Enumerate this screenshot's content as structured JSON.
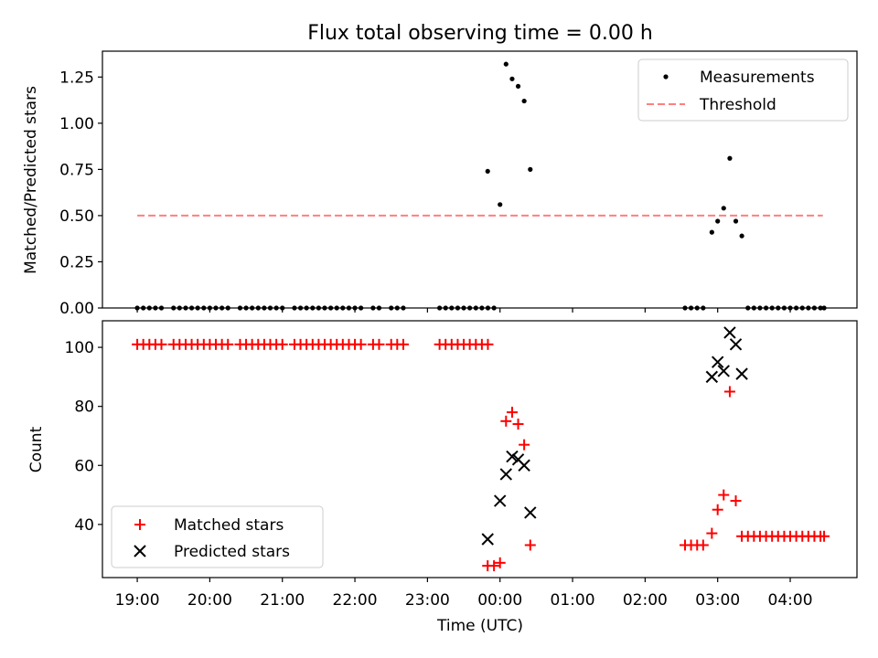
{
  "figure": {
    "title": "Flux total observing time = 0.00 h",
    "xlabel": "Time (UTC)",
    "x_tick_labels": [
      "19:00",
      "20:00",
      "21:00",
      "22:00",
      "23:00",
      "00:00",
      "01:00",
      "02:00",
      "03:00",
      "04:00"
    ],
    "x_tick_hours": [
      0,
      1,
      2,
      3,
      4,
      5,
      6,
      7,
      8,
      9
    ],
    "x_origin_label": "19:00 UTC",
    "xlim_hours": [
      -0.48,
      9.92
    ]
  },
  "chart_data": [
    {
      "type": "scatter",
      "panel": "top",
      "ylabel": "Matched/Predicted stars",
      "ylim": [
        0,
        1.39
      ],
      "y_ticks": [
        0.0,
        0.25,
        0.5,
        0.75,
        1.0,
        1.25
      ],
      "y_tick_labels": [
        "0.00",
        "0.25",
        "0.50",
        "0.75",
        "1.00",
        "1.25"
      ],
      "legend_position": "top-right",
      "x_unit": "hours since 19:00 UTC",
      "series": [
        {
          "name": "Measurements",
          "kind": "points",
          "color": "#000000",
          "points": [
            [
              0.0,
              0
            ],
            [
              0.083,
              0
            ],
            [
              0.167,
              0
            ],
            [
              0.25,
              0
            ],
            [
              0.333,
              0
            ],
            [
              0.5,
              0
            ],
            [
              0.583,
              0
            ],
            [
              0.667,
              0
            ],
            [
              0.75,
              0
            ],
            [
              0.833,
              0
            ],
            [
              0.917,
              0
            ],
            [
              1.0,
              0
            ],
            [
              1.083,
              0
            ],
            [
              1.167,
              0
            ],
            [
              1.25,
              0
            ],
            [
              1.417,
              0
            ],
            [
              1.5,
              0
            ],
            [
              1.583,
              0
            ],
            [
              1.667,
              0
            ],
            [
              1.75,
              0
            ],
            [
              1.833,
              0
            ],
            [
              1.917,
              0
            ],
            [
              2.0,
              0
            ],
            [
              2.167,
              0
            ],
            [
              2.25,
              0
            ],
            [
              2.333,
              0
            ],
            [
              2.417,
              0
            ],
            [
              2.5,
              0
            ],
            [
              2.583,
              0
            ],
            [
              2.667,
              0
            ],
            [
              2.75,
              0
            ],
            [
              2.833,
              0
            ],
            [
              2.917,
              0
            ],
            [
              3.0,
              0
            ],
            [
              3.083,
              0
            ],
            [
              3.25,
              0
            ],
            [
              3.333,
              0
            ],
            [
              3.5,
              0
            ],
            [
              3.583,
              0
            ],
            [
              3.667,
              0
            ],
            [
              4.167,
              0
            ],
            [
              4.25,
              0
            ],
            [
              4.333,
              0
            ],
            [
              4.417,
              0
            ],
            [
              4.5,
              0
            ],
            [
              4.583,
              0
            ],
            [
              4.667,
              0
            ],
            [
              4.75,
              0
            ],
            [
              4.833,
              0
            ],
            [
              4.917,
              0
            ],
            [
              4.83,
              0.74
            ],
            [
              5.0,
              0.56
            ],
            [
              5.083,
              1.32
            ],
            [
              5.167,
              1.24
            ],
            [
              5.25,
              1.2
            ],
            [
              5.333,
              1.12
            ],
            [
              5.417,
              0.75
            ],
            [
              7.55,
              0
            ],
            [
              7.633,
              0
            ],
            [
              7.717,
              0
            ],
            [
              7.8,
              0
            ],
            [
              7.92,
              0.41
            ],
            [
              8.0,
              0.47
            ],
            [
              8.083,
              0.54
            ],
            [
              8.167,
              0.81
            ],
            [
              8.25,
              0.47
            ],
            [
              8.333,
              0.39
            ],
            [
              8.417,
              0
            ],
            [
              8.5,
              0
            ],
            [
              8.583,
              0
            ],
            [
              8.667,
              0
            ],
            [
              8.75,
              0
            ],
            [
              8.833,
              0
            ],
            [
              8.917,
              0
            ],
            [
              9.0,
              0
            ],
            [
              9.083,
              0
            ],
            [
              9.167,
              0
            ],
            [
              9.25,
              0
            ],
            [
              9.333,
              0
            ],
            [
              9.417,
              0
            ],
            [
              9.467,
              0
            ]
          ]
        },
        {
          "name": "Threshold",
          "kind": "dashed-line",
          "color": "#ff7f7f",
          "x": [
            0.0,
            9.45
          ],
          "y": [
            0.5,
            0.5
          ]
        }
      ]
    },
    {
      "type": "scatter",
      "panel": "bottom",
      "ylabel": "Count",
      "ylim": [
        22,
        109
      ],
      "y_ticks": [
        40,
        60,
        80,
        100
      ],
      "y_tick_labels": [
        "40",
        "60",
        "80",
        "100"
      ],
      "legend_position": "bottom-left",
      "x_unit": "hours since 19:00 UTC",
      "series": [
        {
          "name": "Matched stars",
          "kind": "plus",
          "color": "#ff0000",
          "points": [
            [
              0.0,
              101
            ],
            [
              0.083,
              101
            ],
            [
              0.167,
              101
            ],
            [
              0.25,
              101
            ],
            [
              0.333,
              101
            ],
            [
              0.5,
              101
            ],
            [
              0.583,
              101
            ],
            [
              0.667,
              101
            ],
            [
              0.75,
              101
            ],
            [
              0.833,
              101
            ],
            [
              0.917,
              101
            ],
            [
              1.0,
              101
            ],
            [
              1.083,
              101
            ],
            [
              1.167,
              101
            ],
            [
              1.25,
              101
            ],
            [
              1.417,
              101
            ],
            [
              1.5,
              101
            ],
            [
              1.583,
              101
            ],
            [
              1.667,
              101
            ],
            [
              1.75,
              101
            ],
            [
              1.833,
              101
            ],
            [
              1.917,
              101
            ],
            [
              2.0,
              101
            ],
            [
              2.167,
              101
            ],
            [
              2.25,
              101
            ],
            [
              2.333,
              101
            ],
            [
              2.417,
              101
            ],
            [
              2.5,
              101
            ],
            [
              2.583,
              101
            ],
            [
              2.667,
              101
            ],
            [
              2.75,
              101
            ],
            [
              2.833,
              101
            ],
            [
              2.917,
              101
            ],
            [
              3.0,
              101
            ],
            [
              3.083,
              101
            ],
            [
              3.25,
              101
            ],
            [
              3.333,
              101
            ],
            [
              3.5,
              101
            ],
            [
              3.583,
              101
            ],
            [
              3.667,
              101
            ],
            [
              4.167,
              101
            ],
            [
              4.25,
              101
            ],
            [
              4.333,
              101
            ],
            [
              4.417,
              101
            ],
            [
              4.5,
              101
            ],
            [
              4.583,
              101
            ],
            [
              4.667,
              101
            ],
            [
              4.75,
              101
            ],
            [
              4.833,
              101
            ],
            [
              4.83,
              26
            ],
            [
              4.917,
              26
            ],
            [
              5.0,
              27
            ],
            [
              5.083,
              75
            ],
            [
              5.167,
              78
            ],
            [
              5.25,
              74
            ],
            [
              5.333,
              67
            ],
            [
              5.417,
              33
            ],
            [
              7.55,
              33
            ],
            [
              7.633,
              33
            ],
            [
              7.717,
              33
            ],
            [
              7.8,
              33
            ],
            [
              7.92,
              37
            ],
            [
              8.0,
              45
            ],
            [
              8.083,
              50
            ],
            [
              8.167,
              85
            ],
            [
              8.25,
              48
            ],
            [
              8.333,
              36
            ],
            [
              8.417,
              36
            ],
            [
              8.5,
              36
            ],
            [
              8.583,
              36
            ],
            [
              8.667,
              36
            ],
            [
              8.75,
              36
            ],
            [
              8.833,
              36
            ],
            [
              8.917,
              36
            ],
            [
              9.0,
              36
            ],
            [
              9.083,
              36
            ],
            [
              9.167,
              36
            ],
            [
              9.25,
              36
            ],
            [
              9.333,
              36
            ],
            [
              9.417,
              36
            ],
            [
              9.467,
              36
            ]
          ]
        },
        {
          "name": "Predicted stars",
          "kind": "x",
          "color": "#000000",
          "points": [
            [
              4.83,
              35
            ],
            [
              5.0,
              48
            ],
            [
              5.083,
              57
            ],
            [
              5.167,
              63
            ],
            [
              5.25,
              62
            ],
            [
              5.333,
              60
            ],
            [
              5.417,
              44
            ],
            [
              7.92,
              90
            ],
            [
              8.0,
              95
            ],
            [
              8.083,
              92
            ],
            [
              8.167,
              105
            ],
            [
              8.25,
              101
            ],
            [
              8.333,
              91
            ]
          ]
        }
      ]
    }
  ]
}
